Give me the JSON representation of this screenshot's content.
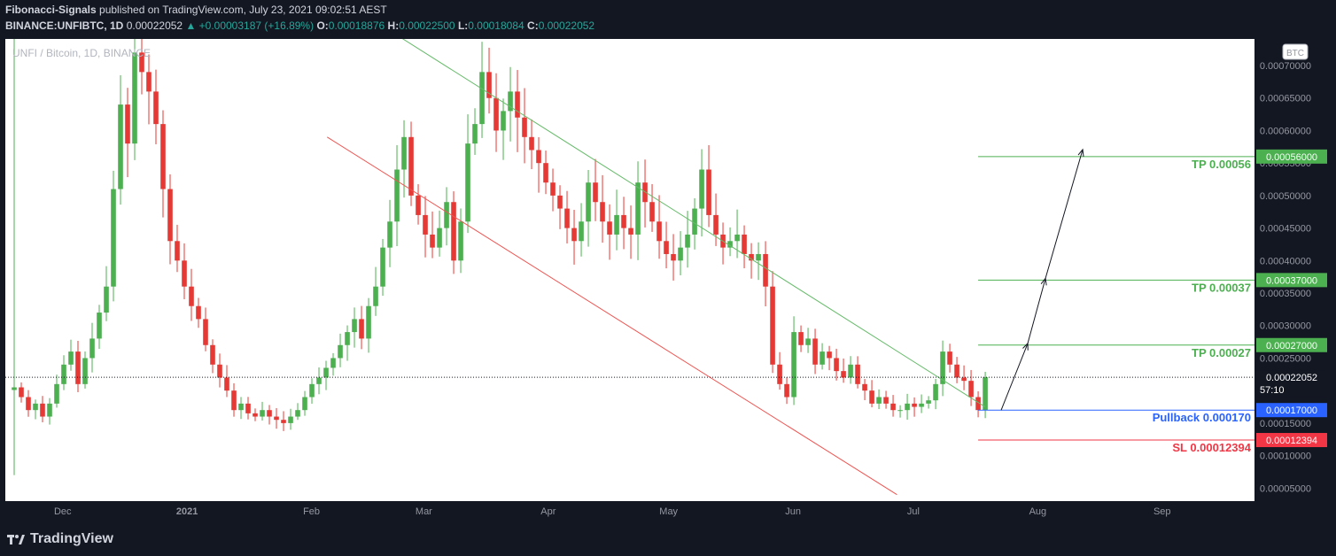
{
  "header": {
    "author": "Fibonacci-Signals",
    "published": " published on TradingView.com, July 23, 2021 09:02:51 AEST",
    "symbol": "BINANCE:UNFIBTC, 1D",
    "last": "0.00022052",
    "change": "▲ +0.00003187 (+16.89%)",
    "o_label": "O:",
    "o": "0.00018876",
    "h_label": "H:",
    "h": "0.00022500",
    "l_label": "L:",
    "l": "0.00018084",
    "c_label": "C:",
    "c": "0.00022052"
  },
  "footer": {
    "brand": "TradingView",
    "logo_icon": "tradingview-logo-icon"
  },
  "colors": {
    "up": "#26a69a",
    "down": "#ef5350",
    "candle_up": "#4caf50",
    "candle_down": "#e53935",
    "tp": "#4caf50",
    "pullback": "#2962ff",
    "sl": "#f23645",
    "trend_upper": "#66bb6a",
    "trend_lower": "#ef5350"
  },
  "chart_data": {
    "type": "candlestick",
    "title": "UNFI / Bitcoin, 1D, BINANCE",
    "currency_badge": "BTC",
    "y_range": [
      3e-05,
      0.00073
    ],
    "y_ticks": [
      "0.00005000",
      "0.00010000",
      "0.00015000",
      "0.00020000",
      "0.00025000",
      "0.00030000",
      "0.00035000",
      "0.00040000",
      "0.00045000",
      "0.00050000",
      "0.00055000",
      "0.00060000",
      "0.00065000",
      "0.00070000"
    ],
    "x_labels": [
      "Dec",
      "2021",
      "Feb",
      "Mar",
      "Apr",
      "May",
      "Jun",
      "Jul",
      "Aug",
      "Sep"
    ],
    "last_price": {
      "value": 0.00022052,
      "label": "0.00022052",
      "countdown": "57:10"
    },
    "levels": [
      {
        "name": "tp3",
        "value": 0.00056,
        "label": "TP 0.00056",
        "tag": "0.00056000",
        "color": "#4caf50"
      },
      {
        "name": "tp2",
        "value": 0.00037,
        "label": "TP 0.00037",
        "tag": "0.00037000",
        "color": "#4caf50"
      },
      {
        "name": "tp1",
        "value": 0.00027,
        "label": "TP 0.00027",
        "tag": "0.00027000",
        "color": "#4caf50"
      },
      {
        "name": "pullback",
        "value": 0.00017,
        "label": "Pullback 0.000170",
        "tag": "0.00017000",
        "color": "#2962ff"
      },
      {
        "name": "sl",
        "value": 0.00012394,
        "label": "SL 0.00012394",
        "tag": "0.00012394",
        "color": "#f23645"
      }
    ],
    "trendlines": [
      {
        "name": "upper-trendline",
        "from": [
          "2021-02-22",
          0.00076
        ],
        "to": [
          "2021-07-22",
          0.000175
        ],
        "color": "#66bb6a"
      },
      {
        "name": "lower-trendline",
        "from": [
          "2021-02-08",
          0.00059
        ],
        "to": [
          "2021-06-30",
          4e-05
        ],
        "color": "#ef5350"
      }
    ],
    "closes": [
      0.000205,
      0.00019,
      0.00017,
      0.00018,
      0.00016,
      0.00018,
      0.00021,
      0.00024,
      0.00026,
      0.00021,
      0.00025,
      0.00028,
      0.00032,
      0.00036,
      0.00051,
      0.00064,
      0.00058,
      0.00072,
      0.00069,
      0.00066,
      0.00061,
      0.00051,
      0.00043,
      0.0004,
      0.00036,
      0.00033,
      0.00031,
      0.00027,
      0.00024,
      0.00022,
      0.0002,
      0.00017,
      0.00018,
      0.000165,
      0.00016,
      0.00017,
      0.00016,
      0.000155,
      0.00015,
      0.00016,
      0.00017,
      0.00019,
      0.00021,
      0.00022,
      0.000235,
      0.00025,
      0.00027,
      0.00029,
      0.00031,
      0.00028,
      0.00033,
      0.00036,
      0.00042,
      0.00046,
      0.00054,
      0.00059,
      0.0005,
      0.00047,
      0.00044,
      0.00042,
      0.00045,
      0.00049,
      0.0004,
      0.00046,
      0.00058,
      0.00061,
      0.00069,
      0.00065,
      0.0006,
      0.00063,
      0.00066,
      0.00062,
      0.00059,
      0.00057,
      0.00055,
      0.00052,
      0.0005,
      0.00048,
      0.00045,
      0.00043,
      0.00046,
      0.00052,
      0.00049,
      0.00046,
      0.00044,
      0.00047,
      0.00045,
      0.00044,
      0.00052,
      0.00049,
      0.00046,
      0.00043,
      0.00041,
      0.0004,
      0.00042,
      0.00044,
      0.00048,
      0.00054,
      0.00047,
      0.00044,
      0.00042,
      0.00043,
      0.00044,
      0.00041,
      0.0004,
      0.00041,
      0.00036,
      0.00024,
      0.00021,
      0.00019,
      0.00029,
      0.00027,
      0.00028,
      0.00024,
      0.00026,
      0.00025,
      0.00023,
      0.00022,
      0.00024,
      0.00021,
      0.0002,
      0.00018,
      0.00019,
      0.00018,
      0.00017,
      0.00017,
      0.00018,
      0.000175,
      0.00018,
      0.000185,
      0.00021,
      0.00026,
      0.00024,
      0.00022,
      0.000215,
      0.00019,
      0.00017,
      0.00022052
    ],
    "x_start": "2020-11-22",
    "x_end": "2021-09-26",
    "first_candle_date": "2020-11-22",
    "last_candle_date": "2021-07-22"
  }
}
